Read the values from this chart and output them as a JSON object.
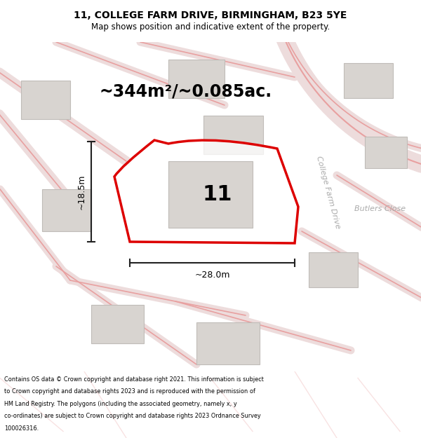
{
  "title": "11, COLLEGE FARM DRIVE, BIRMINGHAM, B23 5YE",
  "subtitle": "Map shows position and indicative extent of the property.",
  "area_text": "~344m²/~0.085ac.",
  "house_number": "11",
  "dim_width": "~28.0m",
  "dim_height": "~18.5m",
  "road_label_1": "College Farm Drive",
  "road_label_2": "Butlers Close",
  "footer_lines": [
    "Contains OS data © Crown copyright and database right 2021. This information is subject",
    "to Crown copyright and database rights 2023 and is reproduced with the permission of",
    "HM Land Registry. The polygons (including the associated geometry, namely x, y",
    "co-ordinates) are subject to Crown copyright and database rights 2023 Ordnance Survey",
    "100026316."
  ],
  "map_bg": "#f8f6f4",
  "plot_outline_color": "#dd0000",
  "road_line_color": "#e8a0a0",
  "road_fill_color": "#eddcdc",
  "building_fill": "#d8d4d0",
  "building_edge": "#c0bcb8",
  "dim_line_color": "#222222",
  "road_text_color": "#aaaaaa"
}
